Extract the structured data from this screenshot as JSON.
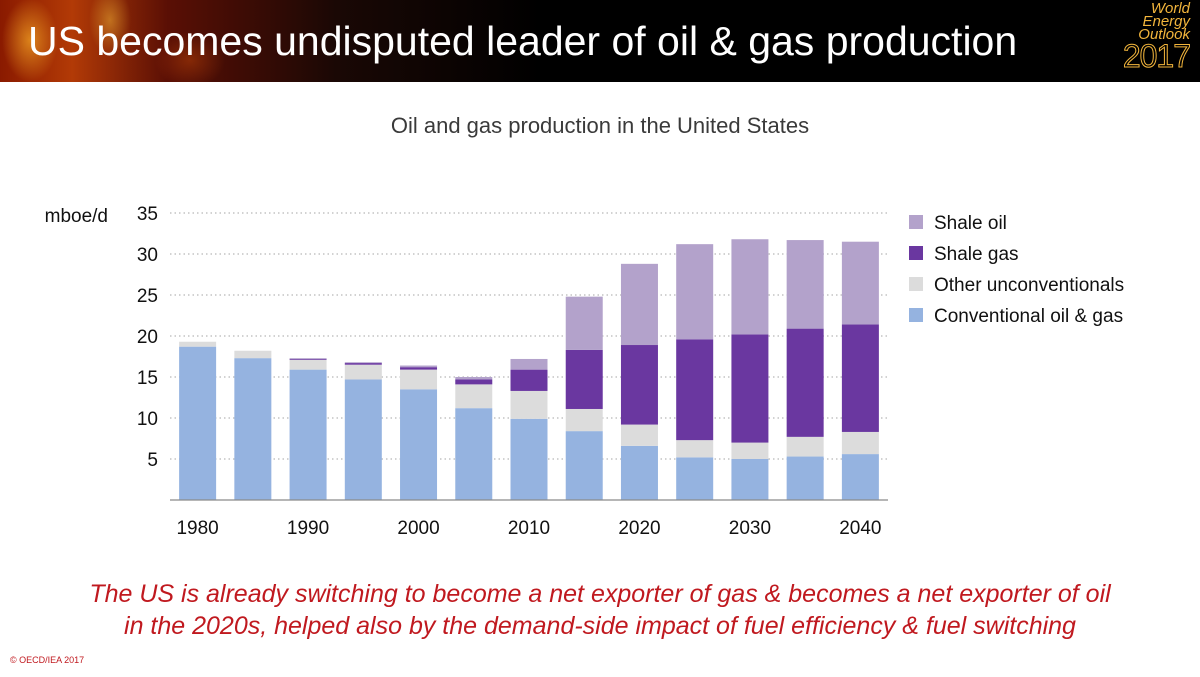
{
  "header": {
    "title": "US becomes undisputed leader of oil & gas production",
    "logo": {
      "line1": "World",
      "line2": "Energy",
      "line3": "Outlook",
      "year": "2017"
    }
  },
  "chart_data": {
    "type": "bar",
    "stacked": true,
    "title": "Oil and gas production in the United States",
    "xlabel": "",
    "ylabel": "mboe/d",
    "ylim": [
      0,
      35
    ],
    "yticks": [
      5,
      10,
      15,
      20,
      25,
      30,
      35
    ],
    "grid": "dotted horizontal",
    "legend_position": "right",
    "categories": [
      "1980",
      "1985",
      "1990",
      "1995",
      "2000",
      "2005",
      "2010",
      "2015",
      "2020",
      "2025",
      "2030",
      "2035",
      "2040"
    ],
    "x_tick_labels": [
      "1980",
      "1990",
      "2000",
      "2010",
      "2020",
      "2030",
      "2040"
    ],
    "series": [
      {
        "name": "Conventional oil & gas",
        "color": "#95b3e0",
        "values": [
          18.7,
          17.3,
          15.9,
          14.7,
          13.5,
          11.2,
          9.9,
          8.4,
          6.6,
          5.2,
          5.0,
          5.3,
          5.6
        ]
      },
      {
        "name": "Other unconventionals",
        "color": "#dcdcdc",
        "values": [
          0.6,
          0.9,
          1.2,
          1.8,
          2.4,
          2.9,
          3.4,
          2.7,
          2.6,
          2.1,
          2.0,
          2.4,
          2.7
        ]
      },
      {
        "name": "Shale gas",
        "color": "#6a37a0",
        "values": [
          0.0,
          0.0,
          0.1,
          0.2,
          0.3,
          0.6,
          2.6,
          7.2,
          9.7,
          12.3,
          13.2,
          13.2,
          13.1
        ]
      },
      {
        "name": "Shale oil",
        "color": "#b3a2cb",
        "values": [
          0.0,
          0.0,
          0.1,
          0.1,
          0.2,
          0.3,
          1.3,
          6.5,
          9.9,
          11.6,
          11.6,
          10.8,
          10.1
        ]
      }
    ],
    "legend_order": [
      "Shale oil",
      "Shale gas",
      "Other unconventionals",
      "Conventional oil & gas"
    ]
  },
  "caption": {
    "line1": "The US is already switching to become a net exporter of gas & becomes a net exporter of oil",
    "line2": "in the 2020s, helped also by the demand-side impact of fuel efficiency & fuel switching"
  },
  "copyright": "© OECD/IEA 2017"
}
